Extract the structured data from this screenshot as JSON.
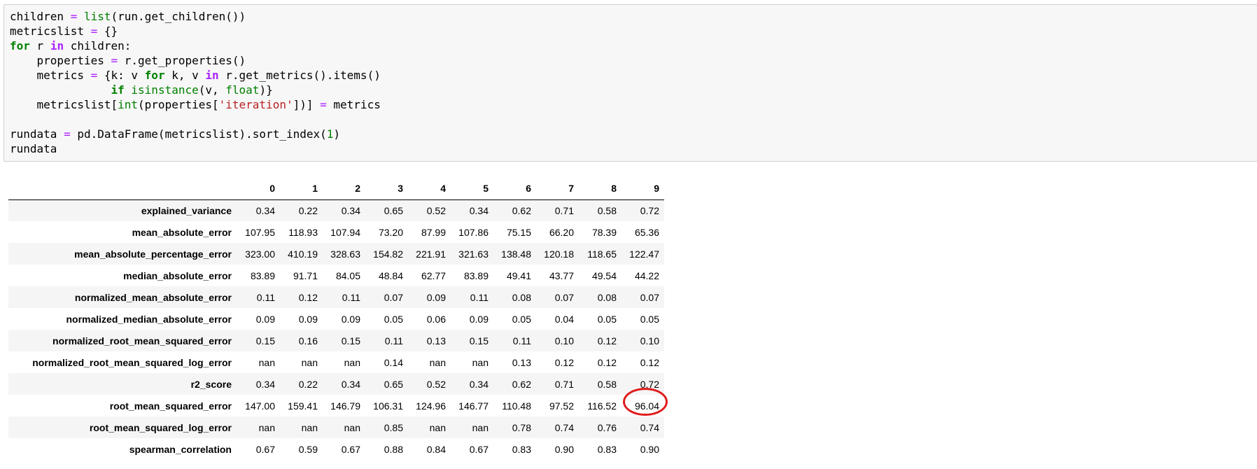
{
  "code_cell": {
    "lines": [
      "children = list(run.get_children())",
      "metricslist = {}",
      "for r in children:",
      "    properties = r.get_properties()",
      "    metrics = {k: v for k, v in r.get_metrics().items()",
      "               if isinstance(v, float)}",
      "    metricslist[int(properties['iteration'])] = metrics",
      "",
      "rundata = pd.DataFrame(metricslist).sort_index(1)",
      "rundata"
    ]
  },
  "dataframe": {
    "columns": [
      "0",
      "1",
      "2",
      "3",
      "4",
      "5",
      "6",
      "7",
      "8",
      "9"
    ],
    "rows": [
      {
        "label": "explained_variance",
        "values": [
          "0.34",
          "0.22",
          "0.34",
          "0.65",
          "0.52",
          "0.34",
          "0.62",
          "0.71",
          "0.58",
          "0.72"
        ]
      },
      {
        "label": "mean_absolute_error",
        "values": [
          "107.95",
          "118.93",
          "107.94",
          "73.20",
          "87.99",
          "107.86",
          "75.15",
          "66.20",
          "78.39",
          "65.36"
        ]
      },
      {
        "label": "mean_absolute_percentage_error",
        "values": [
          "323.00",
          "410.19",
          "328.63",
          "154.82",
          "221.91",
          "321.63",
          "138.48",
          "120.18",
          "118.65",
          "122.47"
        ]
      },
      {
        "label": "median_absolute_error",
        "values": [
          "83.89",
          "91.71",
          "84.05",
          "48.84",
          "62.77",
          "83.89",
          "49.41",
          "43.77",
          "49.54",
          "44.22"
        ]
      },
      {
        "label": "normalized_mean_absolute_error",
        "values": [
          "0.11",
          "0.12",
          "0.11",
          "0.07",
          "0.09",
          "0.11",
          "0.08",
          "0.07",
          "0.08",
          "0.07"
        ]
      },
      {
        "label": "normalized_median_absolute_error",
        "values": [
          "0.09",
          "0.09",
          "0.09",
          "0.05",
          "0.06",
          "0.09",
          "0.05",
          "0.04",
          "0.05",
          "0.05"
        ]
      },
      {
        "label": "normalized_root_mean_squared_error",
        "values": [
          "0.15",
          "0.16",
          "0.15",
          "0.11",
          "0.13",
          "0.15",
          "0.11",
          "0.10",
          "0.12",
          "0.10"
        ]
      },
      {
        "label": "normalized_root_mean_squared_log_error",
        "values": [
          "nan",
          "nan",
          "nan",
          "0.14",
          "nan",
          "nan",
          "0.13",
          "0.12",
          "0.12",
          "0.12"
        ]
      },
      {
        "label": "r2_score",
        "values": [
          "0.34",
          "0.22",
          "0.34",
          "0.65",
          "0.52",
          "0.34",
          "0.62",
          "0.71",
          "0.58",
          "0.72"
        ]
      },
      {
        "label": "root_mean_squared_error",
        "values": [
          "147.00",
          "159.41",
          "146.79",
          "106.31",
          "124.96",
          "146.77",
          "110.48",
          "97.52",
          "116.52",
          "96.04"
        ]
      },
      {
        "label": "root_mean_squared_log_error",
        "values": [
          "nan",
          "nan",
          "nan",
          "0.85",
          "nan",
          "nan",
          "0.78",
          "0.74",
          "0.76",
          "0.74"
        ]
      },
      {
        "label": "spearman_correlation",
        "values": [
          "0.67",
          "0.59",
          "0.67",
          "0.88",
          "0.84",
          "0.67",
          "0.83",
          "0.90",
          "0.83",
          "0.90"
        ]
      }
    ]
  },
  "highlight": {
    "row": 9,
    "col": 9,
    "color": "#e01b1b"
  }
}
